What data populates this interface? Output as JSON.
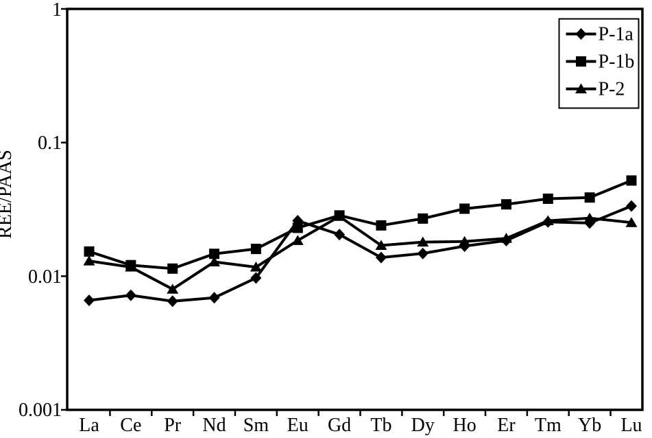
{
  "chart_data": {
    "type": "line",
    "title": "",
    "xlabel": "",
    "ylabel": "REE/PAAS",
    "y_scale": "log",
    "ylim": [
      0.001,
      1
    ],
    "ytick_values": [
      1,
      0.1,
      0.01,
      0.001
    ],
    "ytick_labels": [
      "1",
      "0.1",
      "0.01",
      "0.001"
    ],
    "categories": [
      "La",
      "Ce",
      "Pr",
      "Nd",
      "Sm",
      "Eu",
      "Gd",
      "Tb",
      "Dy",
      "Ho",
      "Er",
      "Tm",
      "Yb",
      "Lu"
    ],
    "grid": false,
    "legend_position": "top-right",
    "line_color": "#000000",
    "background_color": "#ffffff",
    "series": [
      {
        "name": "P-1a",
        "marker": "diamond",
        "values": [
          0.0066,
          0.0072,
          0.0065,
          0.0069,
          0.0097,
          0.026,
          0.0205,
          0.0138,
          0.0148,
          0.0168,
          0.0185,
          0.0255,
          0.025,
          0.0335
        ]
      },
      {
        "name": "P-1b",
        "marker": "square",
        "values": [
          0.0153,
          0.0121,
          0.0114,
          0.0147,
          0.016,
          0.023,
          0.0285,
          0.024,
          0.027,
          0.032,
          0.0345,
          0.038,
          0.0388,
          0.052
        ]
      },
      {
        "name": "P-2",
        "marker": "triangle",
        "values": [
          0.013,
          0.0117,
          0.008,
          0.0128,
          0.0117,
          0.0185,
          0.028,
          0.017,
          0.018,
          0.0182,
          0.0192,
          0.026,
          0.0272,
          0.0252
        ]
      }
    ]
  }
}
